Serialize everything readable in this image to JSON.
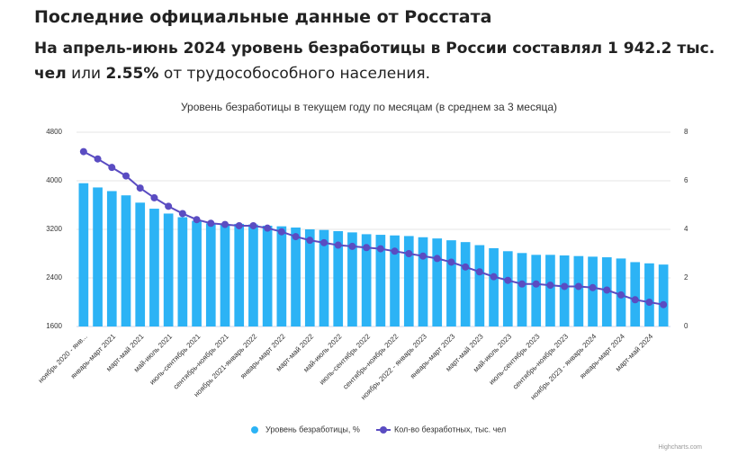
{
  "header": {
    "title": "Последние официальные данные от Росстата",
    "summary": [
      "На апрель-июнь 2024 уровень безработицы в России составлял 1 942.2 тыс. чел",
      "или",
      "2.55%",
      "от трудособособного населения."
    ]
  },
  "chart_data": {
    "type": "bar-line",
    "title": "Уровень безработицы в текущем году по месяцам (в среднем за 3 месяца)",
    "categories": [
      "ноябрь 2020 - янв...",
      null,
      "январь-март 2021",
      null,
      "март-май 2021",
      null,
      "май-июль 2021",
      null,
      "июль-сентябрь 2021",
      null,
      "сентябрь-ноябрь 2021",
      null,
      "ноябрь 2021-январь 2022",
      null,
      "январь-март 2022",
      null,
      "март-май 2022",
      null,
      "май-июль 2022",
      null,
      "июль-сентябрь 2022",
      null,
      "сентябрь-ноябрь 2022",
      null,
      "ноябрь 2022 - январь 2023",
      null,
      "январь-март 2023",
      null,
      "март-май 2023",
      null,
      "май-июль 2023",
      null,
      "июль-сентябрь 2023",
      null,
      "сентябрь-ноябрь 2023",
      null,
      "ноябрь 2023 - январь 2024",
      null,
      "январь-март 2024",
      null,
      "март-май 2024",
      null
    ],
    "series": [
      {
        "name": "Уровень безработицы, %",
        "color": "#2cb3f5",
        "kind": "bar",
        "axis": "y",
        "values": [
          3960,
          3890,
          3830,
          3760,
          3640,
          3540,
          3460,
          3400,
          3340,
          3300,
          3290,
          3290,
          3280,
          3260,
          3250,
          3230,
          3200,
          3190,
          3170,
          3150,
          3120,
          3110,
          3100,
          3090,
          3070,
          3050,
          3020,
          2990,
          2940,
          2890,
          2840,
          2810,
          2780,
          2780,
          2770,
          2760,
          2750,
          2740,
          2720,
          2660,
          2640,
          2620
        ]
      },
      {
        "name": "Кол-во безработных, тыс. чел",
        "color": "#5a4cc2",
        "kind": "line",
        "axis": "y2",
        "values": [
          7.2,
          6.9,
          6.55,
          6.2,
          5.7,
          5.3,
          4.95,
          4.65,
          4.4,
          4.25,
          4.2,
          4.15,
          4.15,
          4.05,
          3.9,
          3.7,
          3.55,
          3.45,
          3.35,
          3.3,
          3.25,
          3.2,
          3.1,
          3.0,
          2.9,
          2.8,
          2.65,
          2.45,
          2.25,
          2.05,
          1.9,
          1.75,
          1.75,
          1.7,
          1.65,
          1.65,
          1.6,
          1.5,
          1.3,
          1.1,
          1.0,
          0.9
        ]
      }
    ],
    "ylim": [
      1600,
      4800
    ],
    "yticks": [
      1600,
      2400,
      3200,
      4000,
      4800
    ],
    "y2lim": [
      0,
      8
    ],
    "y2ticks": [
      0,
      2,
      4,
      6,
      8
    ],
    "grid": true,
    "legend": "bottom",
    "credit": "Highcharts.com"
  }
}
